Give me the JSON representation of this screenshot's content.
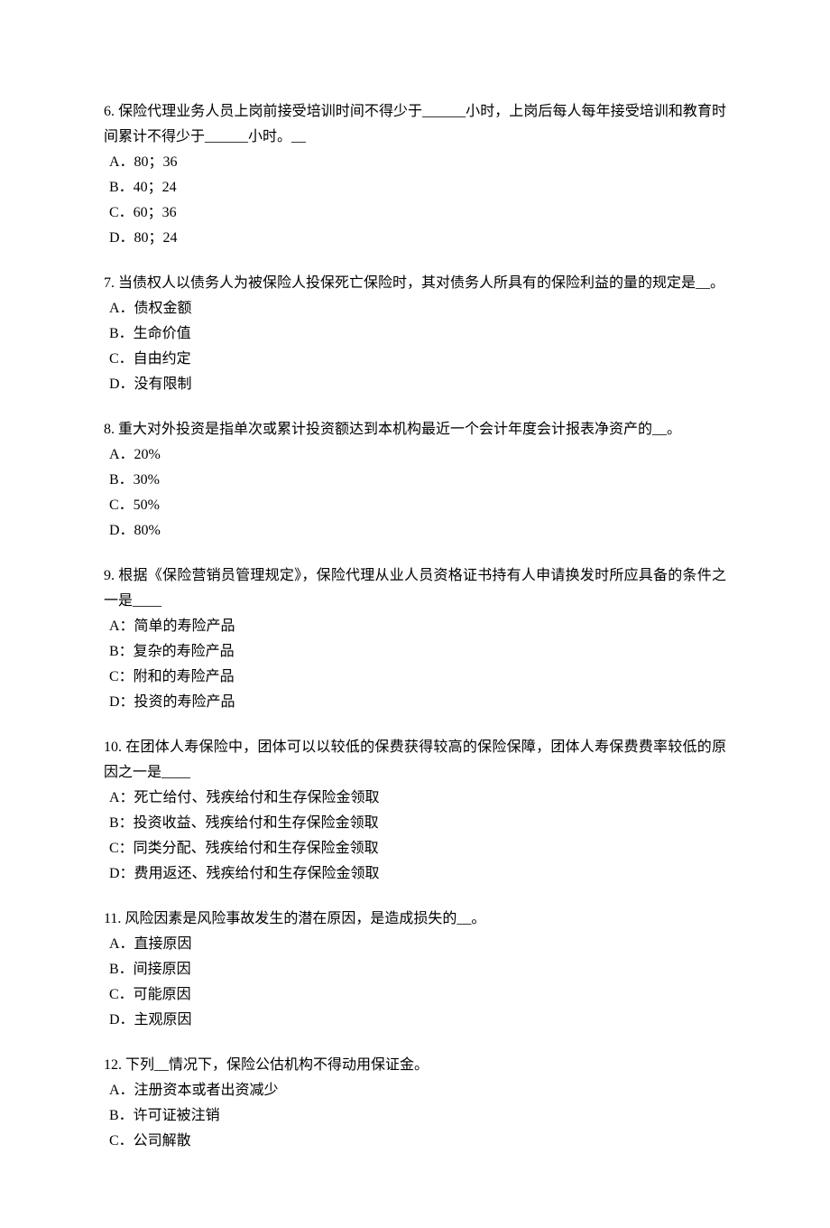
{
  "questions": [
    {
      "number": "6.",
      "text": "保险代理业务人员上岗前接受培训时间不得少于______小时，上岗后每人每年接受培训和教育时间累计不得少于______小时。__",
      "options": [
        "A．80；36",
        "B．40；24",
        "C．60；36",
        "D．80；24"
      ]
    },
    {
      "number": "7.",
      "text": "当债权人以债务人为被保险人投保死亡保险时，其对债务人所具有的保险利益的量的规定是__。",
      "options": [
        "A．债权金额",
        "B．生命价值",
        "C．自由约定",
        "D．没有限制"
      ]
    },
    {
      "number": "8.",
      "text": "重大对外投资是指单次或累计投资额达到本机构最近一个会计年度会计报表净资产的__。",
      "options": [
        "A．20%",
        "B．30%",
        "C．50%",
        "D．80%"
      ]
    },
    {
      "number": "9.",
      "text": "根据《保险营销员管理规定》，保险代理从业人员资格证书持有人申请换发时所应具备的条件之一是____",
      "options": [
        "A：简单的寿险产品",
        "B：复杂的寿险产品",
        "C：附和的寿险产品",
        "D：投资的寿险产品"
      ]
    },
    {
      "number": "10.",
      "text": "在团体人寿保险中，团体可以以较低的保费获得较高的保险保障，团体人寿保费费率较低的原因之一是____",
      "options": [
        "A：死亡给付、残疾给付和生存保险金领取",
        "B：投资收益、残疾给付和生存保险金领取",
        "C：同类分配、残疾给付和生存保险金领取",
        "D：费用返还、残疾给付和生存保险金领取"
      ]
    },
    {
      "number": "11.",
      "text": "风险因素是风险事故发生的潜在原因，是造成损失的__。",
      "options": [
        "A．直接原因",
        "B．间接原因",
        "C．可能原因",
        "D．主观原因"
      ]
    },
    {
      "number": "12.",
      "text": "下列__情况下，保险公估机构不得动用保证金。",
      "options": [
        "A．注册资本或者出资减少",
        "B．许可证被注销",
        "C．公司解散"
      ]
    }
  ]
}
